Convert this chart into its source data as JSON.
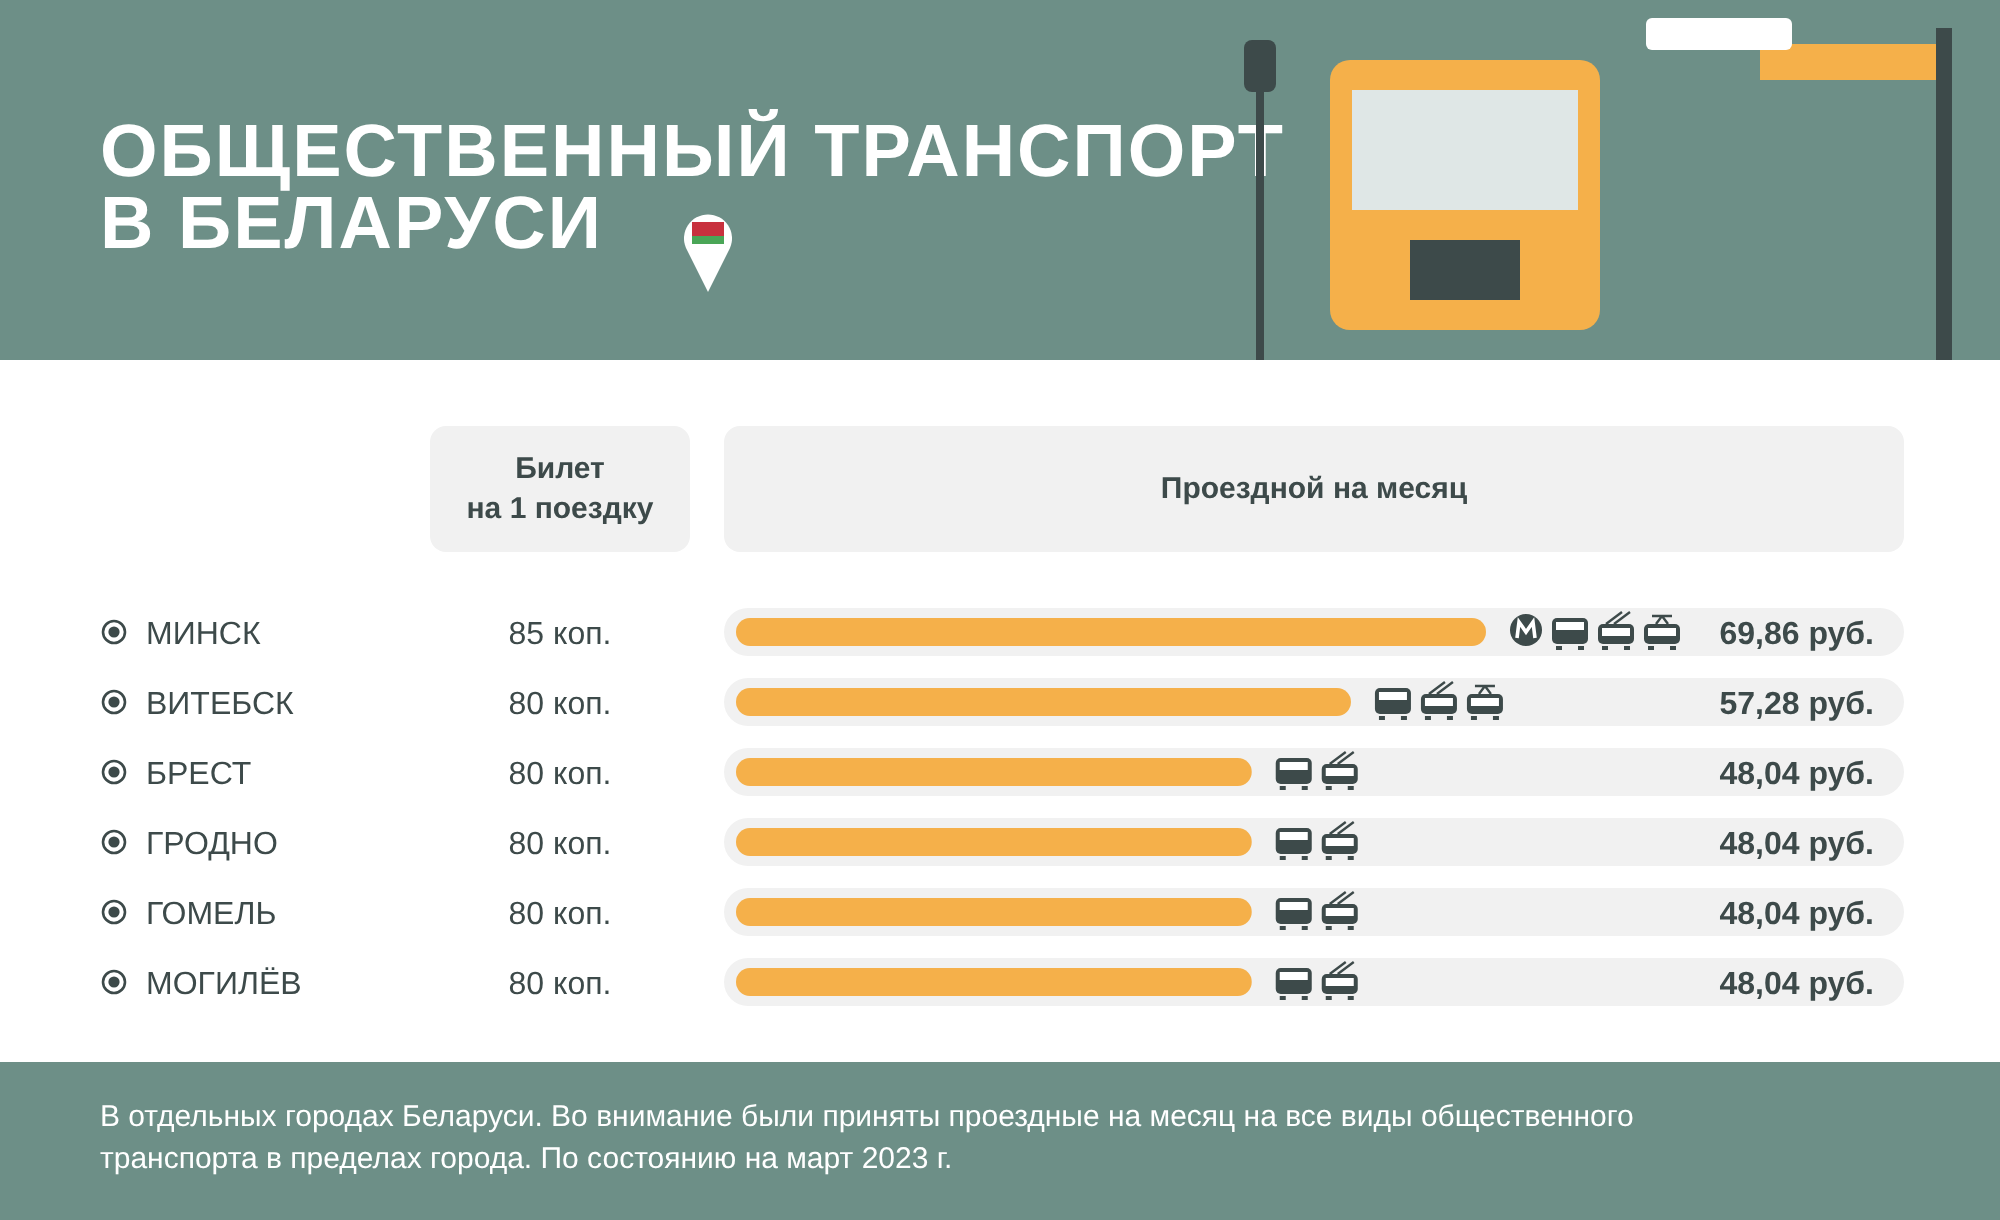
{
  "chart_data": {
    "type": "bar",
    "orientation": "horizontal",
    "title": "ОБЩЕСТВЕННЫЙ ТРАНСПОРТ В БЕЛАРУСИ",
    "categories": [
      "МИНСК",
      "ВИТЕБСК",
      "БРЕСТ",
      "ГРОДНО",
      "ГОМЕЛЬ",
      "МОГИЛЁВ"
    ],
    "values": [
      69.86,
      57.28,
      48.04,
      48.04,
      48.04,
      48.04
    ],
    "value_labels": [
      "69,86 руб.",
      "57,28 руб.",
      "48,04 руб.",
      "48,04 руб.",
      "48,04 руб.",
      "48,04 руб."
    ],
    "color": "#f5b04a",
    "annotations": [
      "Билет на 1 поездку",
      "Проездной на месяц",
      "85 коп.",
      "80 коп.",
      "80 коп.",
      "80 коп.",
      "80 коп.",
      "80 коп.",
      "В отдельных городах Беларуси. Во внимание были приняты проездные на месяц на все виды общественного транспорта в пределах города. По состоянию на март 2023 г."
    ]
  }
}
